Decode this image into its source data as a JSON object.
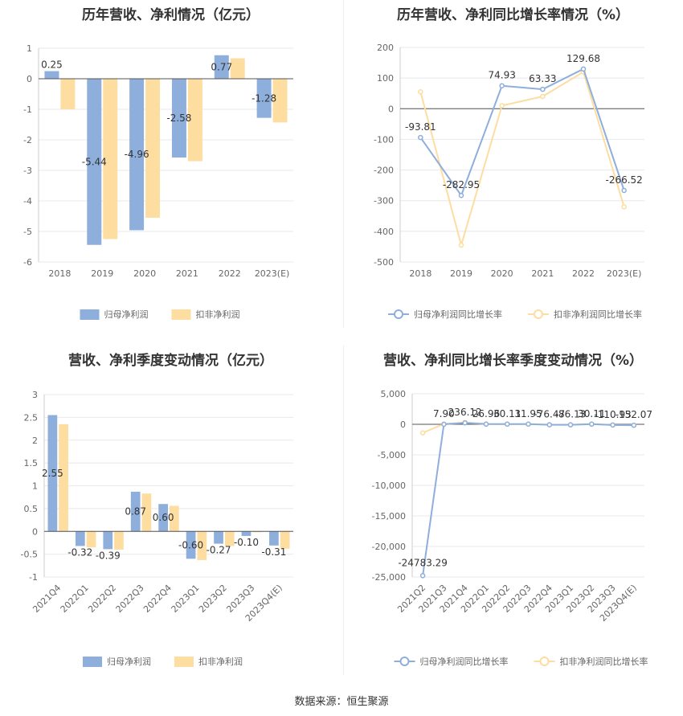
{
  "source": "数据来源：恒生聚源",
  "colors": {
    "blue": "#8eaedb",
    "orange": "#fddda0",
    "line_blue": "#8eaedb",
    "line_orange": "#fddda0",
    "axis": "#666666",
    "grid": "#e8e8ee"
  },
  "chart_data": [
    {
      "type": "bar",
      "title": "历年营收、净利情况（亿元）",
      "categories": [
        "2018",
        "2019",
        "2020",
        "2021",
        "2022",
        "2023(E)"
      ],
      "series": [
        {
          "name": "归母净利润",
          "values": [
            0.25,
            -5.44,
            -4.96,
            -2.58,
            0.77,
            -1.28
          ],
          "labels": [
            "0.25",
            "-5.44",
            "-4.96",
            "-2.58",
            "0.77",
            "-1.28"
          ]
        },
        {
          "name": "扣非净利润",
          "values": [
            -1.0,
            -5.25,
            -4.55,
            -2.7,
            0.67,
            -1.43
          ]
        }
      ],
      "yticks": [
        1,
        0,
        -1,
        -2,
        -3,
        -4,
        -5,
        -6
      ],
      "ylim": [
        -6,
        1
      ],
      "grid": true,
      "legend": "bottom"
    },
    {
      "type": "line",
      "title": "历年营收、净利同比增长率情况（%）",
      "categories": [
        "2018",
        "2019",
        "2020",
        "2021",
        "2022",
        "2023(E)"
      ],
      "series": [
        {
          "name": "归母净利润同比增长率",
          "values": [
            -93.81,
            -282.95,
            74.93,
            63.33,
            129.68,
            -266.52
          ],
          "labels": [
            "-93.81",
            "-282.95",
            "74.93",
            "63.33",
            "129.68",
            "-266.52"
          ]
        },
        {
          "name": "扣非净利润同比增长率",
          "values": [
            55,
            -445,
            10,
            40,
            120,
            -320
          ]
        }
      ],
      "yticks": [
        200,
        100,
        0,
        -100,
        -200,
        -300,
        -400,
        -500
      ],
      "ylim": [
        -500,
        200
      ],
      "grid": true,
      "legend": "bottom"
    },
    {
      "type": "bar",
      "title": "营收、净利季度变动情况（亿元）",
      "categories": [
        "2021Q4",
        "2022Q1",
        "2022Q2",
        "2022Q3",
        "2022Q4",
        "2023Q1",
        "2023Q2",
        "2023Q3",
        "2023Q4(E)"
      ],
      "series": [
        {
          "name": "归母净利润",
          "values": [
            2.55,
            -0.32,
            -0.39,
            0.87,
            0.6,
            -0.6,
            -0.27,
            -0.1,
            -0.31
          ],
          "labels": [
            "2.55",
            "-0.32",
            "-0.39",
            "0.87",
            "0.60",
            "-0.60",
            "-0.27",
            "-0.10",
            "-0.31"
          ]
        },
        {
          "name": "扣非净利润",
          "values": [
            2.35,
            -0.35,
            -0.4,
            0.83,
            0.56,
            -0.63,
            -0.32,
            -0.02,
            -0.38
          ]
        }
      ],
      "yticks": [
        3,
        2.5,
        2,
        1.5,
        1,
        0.5,
        0,
        -0.5,
        -1
      ],
      "ylim": [
        -1,
        3
      ],
      "grid": true,
      "legend": "bottom"
    },
    {
      "type": "line",
      "title": "营收、净利同比增长率季度变动情况（%）",
      "categories": [
        "2021Q2",
        "2021Q3",
        "2021Q4",
        "2022Q1",
        "2022Q2",
        "2022Q3",
        "2022Q4",
        "2023Q1",
        "2023Q2",
        "2023Q3",
        "2023Q4(E)"
      ],
      "series": [
        {
          "name": "归母净利润同比增长率",
          "values": [
            -24783.29,
            7.9,
            236.12,
            26.96,
            30.11,
            31.95,
            -76.47,
            -86.13,
            30.11,
            -110.93,
            -152.07
          ],
          "labels": [
            "-24783.29",
            "7.90",
            "236.12",
            "26.96",
            "30.11",
            "31.95",
            "-76.47",
            "-86.13",
            "30.11",
            "-110.93",
            "-152.07"
          ]
        },
        {
          "name": "扣非净利润同比增长率",
          "values": [
            -1400,
            50,
            300,
            60,
            40,
            30,
            -60,
            -80,
            40,
            -120,
            -160
          ]
        }
      ],
      "yticks": [
        "5,000",
        "0",
        "-5,000",
        "-10,000",
        "-15,000",
        "-20,000",
        "-25,000"
      ],
      "ytick_values": [
        5000,
        0,
        -5000,
        -10000,
        -15000,
        -20000,
        -25000
      ],
      "ylim": [
        -25000,
        5000
      ],
      "grid": true,
      "legend": "bottom"
    }
  ]
}
